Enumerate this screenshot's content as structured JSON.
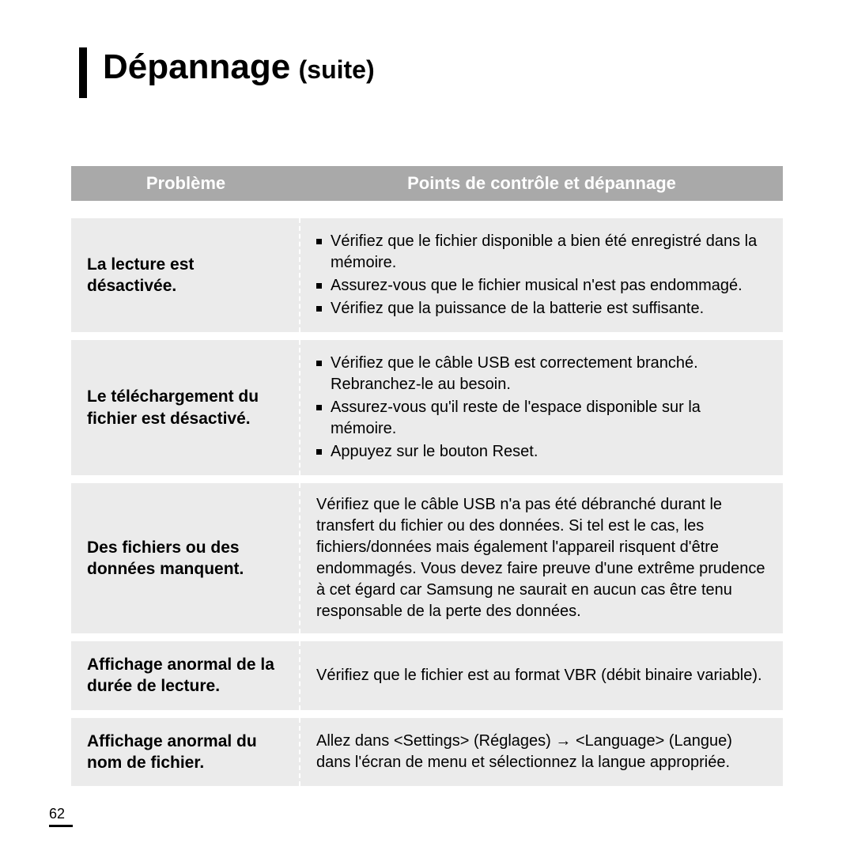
{
  "title": {
    "main": "Dépannage",
    "sub": "(suite)"
  },
  "header": {
    "problem": "Problème",
    "points": "Points de contrôle et dépannage"
  },
  "header_bg": "#a9a9a9",
  "header_text_color": "#ffffff",
  "row_bg": "#ebebeb",
  "rows": [
    {
      "problem": "La lecture est désactivée.",
      "bullets": [
        "Vérifiez que le fichier disponible a bien été enregistré dans la mémoire.",
        "Assurez-vous que le fichier musical n'est pas endommagé.",
        "Vérifiez que la puissance de la batterie est suffisante."
      ]
    },
    {
      "problem": "Le téléchargement du fichier est désactivé.",
      "bullets": [
        "Vérifiez que le câble  USB est correctement branché. Rebranchez-le au besoin.",
        "Assurez-vous qu'il reste de l'espace disponible sur la mémoire.",
        "Appuyez sur le bouton Reset."
      ]
    },
    {
      "problem": "Des fichiers ou des données manquent.",
      "text": "Vérifiez que le câble  USB n'a pas été débranché durant le transfert du fichier ou des données. Si tel est le cas, les fichiers/données mais également l'appareil risquent d'être endommagés. Vous devez faire preuve d'une extrême prudence à cet égard car Samsung ne saurait en aucun cas être tenu responsable de la perte des données."
    },
    {
      "problem": "Affichage anormal de la durée de lecture.",
      "text": "Vérifiez que le fichier est au format  VBR (débit binaire variable)."
    },
    {
      "problem": "Affichage anormal du nom de fichier.",
      "text": "Allez dans <Settings> (Réglages) → <Language> (Langue) dans l'écran de menu et sélectionnez la langue appropriée."
    }
  ],
  "page_number": "62"
}
